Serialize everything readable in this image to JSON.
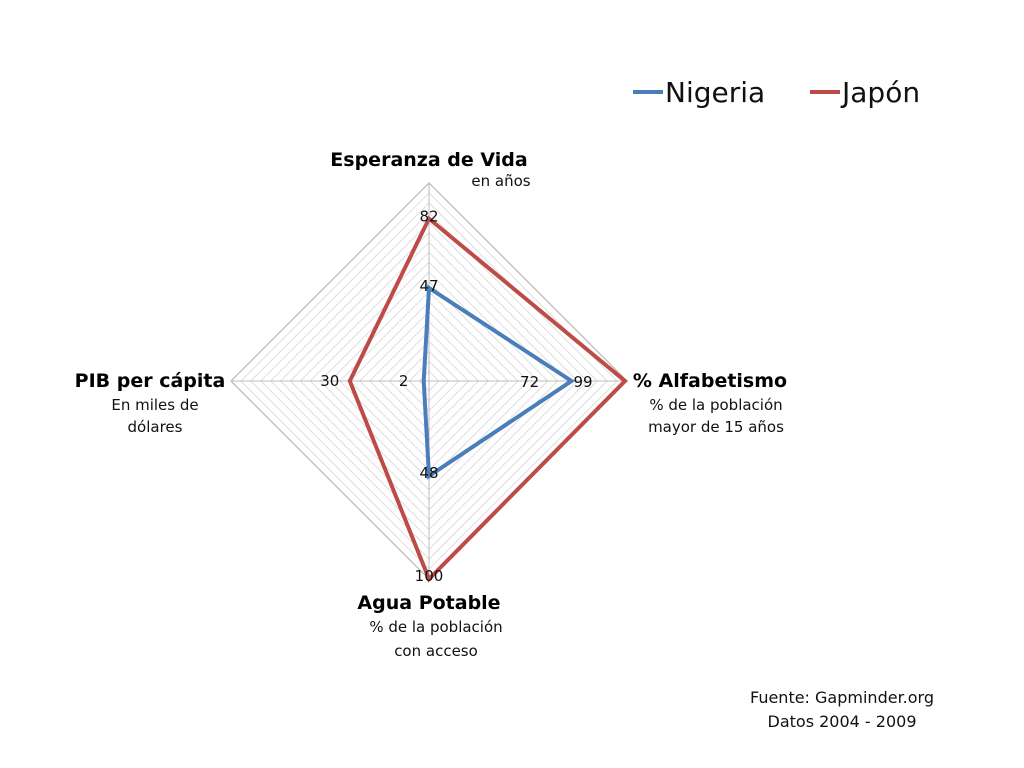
{
  "chart_data": {
    "type": "radar",
    "axes": [
      {
        "key": "vida",
        "title": "Esperanza de Vida",
        "subtitle": [
          "en años"
        ],
        "max": 100
      },
      {
        "key": "alfa",
        "title": "% Alfabetismo",
        "subtitle": [
          "% de la población",
          "mayor de 15 años"
        ],
        "max": 100
      },
      {
        "key": "agua",
        "title": "Agua Potable",
        "subtitle": [
          "% de la población",
          "con acceso"
        ],
        "max": 100
      },
      {
        "key": "pib",
        "title": "PIB per cápita",
        "subtitle": [
          "En miles de",
          "dólares"
        ],
        "max": 75
      }
    ],
    "series": [
      {
        "name": "Nigeria",
        "color": "#4a7ebb",
        "values": [
          47,
          72,
          48,
          2
        ],
        "labels": [
          "47",
          "72",
          "48",
          "2"
        ]
      },
      {
        "name": "Japón",
        "color": "#be4b48",
        "values": [
          82,
          99,
          100,
          30
        ],
        "labels": [
          "82",
          "99",
          "100",
          "30"
        ]
      }
    ],
    "grid": true,
    "legend": "top-right"
  },
  "source": {
    "line1": "Fuente: Gapminder.org",
    "line2": "Datos 2004 - 2009"
  }
}
